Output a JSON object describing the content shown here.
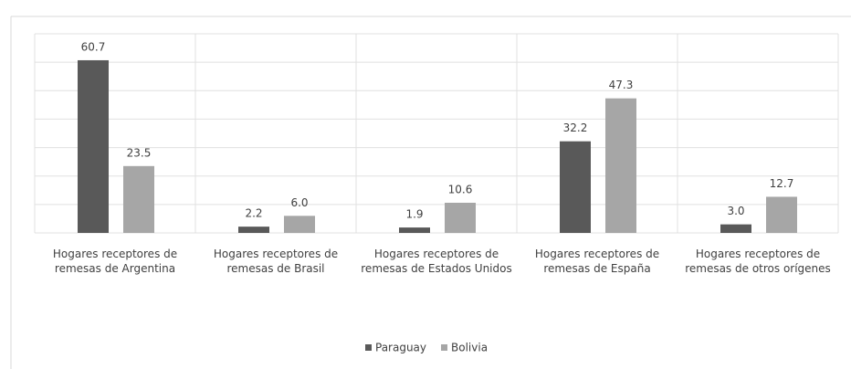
{
  "chart_data": {
    "type": "bar",
    "categories": [
      "Hogares receptores de remesas de Argentina",
      "Hogares receptores de remesas de Brasil",
      "Hogares receptores de remesas de Estados Unidos",
      "Hogares receptores de remesas de España",
      "Hogares receptores de remesas de otros orígenes"
    ],
    "series": [
      {
        "name": "Paraguay",
        "color": "#595959",
        "values": [
          60.7,
          2.2,
          1.9,
          32.2,
          3.0
        ],
        "value_labels": [
          "60.7",
          "2.2",
          "1.9",
          "32.2",
          "3.0"
        ]
      },
      {
        "name": "Bolivia",
        "color": "#a6a6a6",
        "values": [
          23.5,
          6.0,
          10.6,
          47.3,
          12.7
        ],
        "value_labels": [
          "23.5",
          "6.0",
          "10.6",
          "47.3",
          "12.7"
        ]
      }
    ],
    "ylim": [
      0,
      70
    ],
    "yticks": [
      0,
      10,
      20,
      30,
      40,
      50,
      60,
      70
    ],
    "grid": true,
    "legend": "bottom"
  }
}
